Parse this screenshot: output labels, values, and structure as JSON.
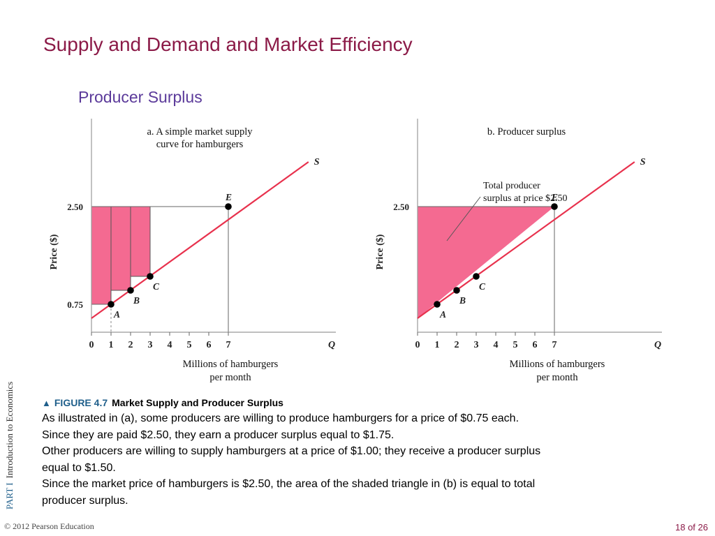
{
  "slide": {
    "title": "Supply and Demand and Market Efficiency",
    "subtitle": "Producer Surplus"
  },
  "figure": {
    "number": "FIGURE 4.7",
    "title": "Market Supply and Producer Surplus",
    "caption_lines": [
      "As illustrated in (a), some producers are willing to produce hamburgers for a price of $0.75 each.",
      "Since they are paid $2.50, they earn a producer surplus equal to $1.75.",
      "Other producers are willing to supply hamburgers at a price of $1.00; they receive a producer surplus",
      "equal to $1.50.",
      "Since the market price of hamburgers is $2.50, the area of the shaded triangle in (b) is equal to total",
      "producer surplus."
    ]
  },
  "footer": {
    "part": "PART  I",
    "course": "Introduction  to  Economics",
    "copyright": "© 2012 Pearson Education",
    "page": "18 of 26"
  },
  "colors": {
    "fill": "#f46a91",
    "supply_line": "#e8314d",
    "title": "#8b1a47",
    "subtitle": "#5b3a9a",
    "accent": "#1f5f8b"
  },
  "chart_data": [
    {
      "type": "line",
      "title_lines": [
        "a. A simple market supply",
        "curve for hamburgers"
      ],
      "xlabel_lines": [
        "Millions of hamburgers",
        "per month"
      ],
      "ylabel": "Price ($)",
      "x_axis_name": "Q",
      "xticks": [
        0,
        1,
        2,
        3,
        4,
        5,
        6,
        7
      ],
      "yticks": [
        0.75,
        2.5
      ],
      "ytick_labels": [
        "0.75",
        "2.50"
      ],
      "xlim": [
        0,
        12.5
      ],
      "ylim": [
        0,
        4.2
      ],
      "series": [
        {
          "name": "S",
          "x": [
            0,
            11.1
          ],
          "y": [
            0.5,
            3.3
          ]
        }
      ],
      "points": [
        {
          "label": "A",
          "x": 1,
          "y": 0.75
        },
        {
          "label": "B",
          "x": 2,
          "y": 1.0
        },
        {
          "label": "C",
          "x": 3,
          "y": 1.25
        },
        {
          "label": "E",
          "x": 7,
          "y": 2.5
        }
      ],
      "surplus_bars": [
        {
          "x0": 0,
          "x1": 1,
          "y0": 0.75,
          "y1": 2.5
        },
        {
          "x0": 1,
          "x1": 2,
          "y0": 1.0,
          "y1": 2.5
        },
        {
          "x0": 2,
          "x1": 3,
          "y0": 1.25,
          "y1": 2.5
        }
      ],
      "market_price": 2.5,
      "market_quantity": 7
    },
    {
      "type": "area",
      "title_lines": [
        "b. Producer surplus"
      ],
      "xlabel_lines": [
        "Millions of hamburgers",
        "per month"
      ],
      "ylabel": "Price ($)",
      "x_axis_name": "Q",
      "xticks": [
        0,
        1,
        2,
        3,
        4,
        5,
        6,
        7
      ],
      "yticks": [
        2.5
      ],
      "ytick_labels": [
        "2.50"
      ],
      "xlim": [
        0,
        12.5
      ],
      "ylim": [
        0,
        4.2
      ],
      "series": [
        {
          "name": "S",
          "x": [
            0,
            11.1
          ],
          "y": [
            0.5,
            3.3
          ]
        }
      ],
      "points": [
        {
          "label": "A",
          "x": 1,
          "y": 0.75
        },
        {
          "label": "B",
          "x": 2,
          "y": 1.0
        },
        {
          "label": "C",
          "x": 3,
          "y": 1.25
        },
        {
          "label": "E",
          "x": 7,
          "y": 2.5
        }
      ],
      "annotation_lines": [
        "Total producer",
        "surplus at price $2.50"
      ],
      "market_price": 2.5,
      "market_quantity": 7
    }
  ]
}
